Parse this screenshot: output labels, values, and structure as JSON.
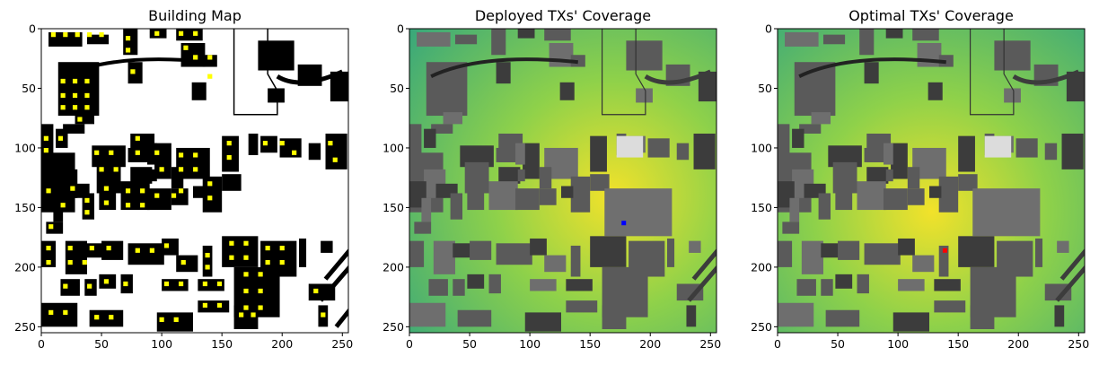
{
  "figure": {
    "panels": [
      {
        "title": "Building Map"
      },
      {
        "title": "Deployed TXs' Coverage"
      },
      {
        "title": "Optimal TXs' Coverage"
      }
    ]
  },
  "chart_data": [
    {
      "type": "heatmap",
      "title": "Building Map",
      "x_ticks": [
        "0",
        "50",
        "100",
        "150",
        "200",
        "250"
      ],
      "y_ticks": [
        "0",
        "50",
        "100",
        "150",
        "200",
        "250"
      ],
      "xlim": [
        0,
        255
      ],
      "ylim": [
        255,
        0
      ],
      "colors": {
        "background": "#ffffff",
        "building": "#000000",
        "candidate_site": "#ffff00"
      },
      "buildings": [
        [
          6,
          3,
          28,
          12
        ],
        [
          38,
          5,
          18,
          8
        ],
        [
          68,
          0,
          12,
          22
        ],
        [
          90,
          0,
          14,
          8
        ],
        [
          112,
          0,
          22,
          10
        ],
        [
          116,
          12,
          20,
          20
        ],
        [
          72,
          28,
          12,
          18
        ],
        [
          134,
          22,
          12,
          10
        ],
        [
          180,
          10,
          30,
          25
        ],
        [
          125,
          45,
          12,
          15
        ],
        [
          188,
          50,
          14,
          12
        ],
        [
          213,
          30,
          20,
          18
        ],
        [
          240,
          36,
          16,
          25
        ],
        [
          14,
          28,
          34,
          45
        ],
        [
          18,
          38,
          24,
          12
        ],
        [
          28,
          70,
          16,
          10
        ],
        [
          18,
          80,
          18,
          8
        ],
        [
          0,
          80,
          10,
          28
        ],
        [
          12,
          84,
          10,
          16
        ],
        [
          0,
          104,
          28,
          50
        ],
        [
          12,
          118,
          18,
          24
        ],
        [
          42,
          98,
          28,
          18
        ],
        [
          46,
          112,
          20,
          26
        ],
        [
          74,
          88,
          20,
          24
        ],
        [
          94,
          96,
          14,
          30
        ],
        [
          112,
          100,
          28,
          26
        ],
        [
          134,
          124,
          16,
          30
        ],
        [
          150,
          90,
          14,
          30
        ],
        [
          150,
          122,
          16,
          14
        ],
        [
          172,
          88,
          8,
          18
        ],
        [
          182,
          90,
          14,
          14
        ],
        [
          198,
          92,
          18,
          16
        ],
        [
          222,
          96,
          10,
          14
        ],
        [
          236,
          88,
          18,
          30
        ],
        [
          72,
          100,
          18,
          12
        ],
        [
          88,
          96,
          8,
          18
        ],
        [
          74,
          116,
          18,
          14
        ],
        [
          90,
          118,
          6,
          10
        ],
        [
          108,
          116,
          10,
          18
        ],
        [
          0,
          128,
          14,
          22
        ],
        [
          10,
          142,
          8,
          20
        ],
        [
          4,
          162,
          14,
          10
        ],
        [
          22,
          130,
          18,
          12
        ],
        [
          34,
          138,
          10,
          22
        ],
        [
          48,
          128,
          14,
          24
        ],
        [
          66,
          128,
          24,
          24
        ],
        [
          88,
          134,
          20,
          18
        ],
        [
          108,
          134,
          14,
          14
        ],
        [
          126,
          132,
          10,
          10
        ],
        [
          0,
          178,
          12,
          22
        ],
        [
          20,
          178,
          18,
          28
        ],
        [
          36,
          180,
          18,
          12
        ],
        [
          50,
          178,
          18,
          16
        ],
        [
          72,
          180,
          30,
          18
        ],
        [
          100,
          176,
          14,
          14
        ],
        [
          112,
          190,
          18,
          14
        ],
        [
          134,
          182,
          8,
          26
        ],
        [
          150,
          174,
          30,
          26
        ],
        [
          182,
          178,
          30,
          30
        ],
        [
          214,
          176,
          6,
          24
        ],
        [
          232,
          178,
          10,
          10
        ],
        [
          16,
          210,
          16,
          14
        ],
        [
          36,
          210,
          10,
          14
        ],
        [
          48,
          206,
          14,
          12
        ],
        [
          66,
          206,
          10,
          16
        ],
        [
          100,
          210,
          22,
          10
        ],
        [
          130,
          210,
          22,
          10
        ],
        [
          160,
          200,
          38,
          42
        ],
        [
          222,
          214,
          22,
          14
        ],
        [
          230,
          232,
          8,
          18
        ],
        [
          0,
          230,
          30,
          20
        ],
        [
          40,
          236,
          28,
          14
        ],
        [
          96,
          238,
          30,
          16
        ],
        [
          130,
          228,
          26,
          10
        ],
        [
          160,
          232,
          20,
          20
        ]
      ],
      "sites": [
        [
          10,
          5
        ],
        [
          20,
          5
        ],
        [
          30,
          5
        ],
        [
          40,
          5
        ],
        [
          50,
          5
        ],
        [
          72,
          8
        ],
        [
          72,
          18
        ],
        [
          96,
          4
        ],
        [
          116,
          4
        ],
        [
          128,
          4
        ],
        [
          120,
          16
        ],
        [
          128,
          24
        ],
        [
          140,
          24
        ],
        [
          76,
          36
        ],
        [
          140,
          40
        ],
        [
          18,
          44
        ],
        [
          28,
          44
        ],
        [
          38,
          44
        ],
        [
          18,
          56
        ],
        [
          28,
          56
        ],
        [
          38,
          56
        ],
        [
          18,
          66
        ],
        [
          28,
          66
        ],
        [
          38,
          66
        ],
        [
          32,
          76
        ],
        [
          4,
          92
        ],
        [
          4,
          102
        ],
        [
          16,
          92
        ],
        [
          46,
          104
        ],
        [
          58,
          104
        ],
        [
          50,
          118
        ],
        [
          62,
          118
        ],
        [
          80,
          92
        ],
        [
          80,
          104
        ],
        [
          96,
          104
        ],
        [
          100,
          118
        ],
        [
          116,
          106
        ],
        [
          128,
          106
        ],
        [
          116,
          118
        ],
        [
          128,
          118
        ],
        [
          140,
          130
        ],
        [
          140,
          142
        ],
        [
          156,
          96
        ],
        [
          156,
          108
        ],
        [
          186,
          96
        ],
        [
          200,
          96
        ],
        [
          210,
          104
        ],
        [
          240,
          96
        ],
        [
          244,
          110
        ],
        [
          6,
          136
        ],
        [
          18,
          148
        ],
        [
          8,
          166
        ],
        [
          26,
          134
        ],
        [
          38,
          144
        ],
        [
          38,
          154
        ],
        [
          54,
          134
        ],
        [
          54,
          146
        ],
        [
          72,
          136
        ],
        [
          84,
          136
        ],
        [
          72,
          148
        ],
        [
          84,
          148
        ],
        [
          96,
          140
        ],
        [
          110,
          140
        ],
        [
          116,
          136
        ],
        [
          6,
          184
        ],
        [
          6,
          196
        ],
        [
          24,
          184
        ],
        [
          24,
          196
        ],
        [
          36,
          196
        ],
        [
          42,
          184
        ],
        [
          56,
          184
        ],
        [
          80,
          186
        ],
        [
          92,
          186
        ],
        [
          104,
          182
        ],
        [
          118,
          196
        ],
        [
          138,
          190
        ],
        [
          138,
          200
        ],
        [
          158,
          180
        ],
        [
          170,
          180
        ],
        [
          158,
          192
        ],
        [
          170,
          192
        ],
        [
          188,
          184
        ],
        [
          200,
          184
        ],
        [
          188,
          196
        ],
        [
          200,
          196
        ],
        [
          20,
          216
        ],
        [
          40,
          216
        ],
        [
          54,
          212
        ],
        [
          70,
          214
        ],
        [
          104,
          214
        ],
        [
          116,
          214
        ],
        [
          136,
          214
        ],
        [
          148,
          214
        ],
        [
          170,
          206
        ],
        [
          182,
          206
        ],
        [
          170,
          220
        ],
        [
          182,
          220
        ],
        [
          170,
          234
        ],
        [
          182,
          234
        ],
        [
          228,
          220
        ],
        [
          234,
          240
        ],
        [
          8,
          238
        ],
        [
          20,
          238
        ],
        [
          46,
          242
        ],
        [
          58,
          242
        ],
        [
          100,
          244
        ],
        [
          112,
          244
        ],
        [
          136,
          232
        ],
        [
          148,
          232
        ],
        [
          166,
          240
        ],
        [
          176,
          240
        ]
      ],
      "notes": [
        [
          158,
          0
        ],
        [
          240,
          18
        ]
      ]
    },
    {
      "type": "heatmap",
      "title": "Deployed TXs' Coverage",
      "x_ticks": [
        "0",
        "50",
        "100",
        "150",
        "200",
        "250"
      ],
      "y_ticks": [
        "0",
        "50",
        "100",
        "150",
        "200",
        "250"
      ],
      "xlim": [
        0,
        255
      ],
      "ylim": [
        255,
        0
      ],
      "colors": {
        "low": "#3aa87a",
        "mid": "#8ed14a",
        "high": "#f2e22a",
        "building": "#5a5a5a",
        "transmitter": "#0000ff"
      },
      "transmitters": [
        [
          178,
          163
        ]
      ]
    },
    {
      "type": "heatmap",
      "title": "Optimal TXs' Coverage",
      "x_ticks": [
        "0",
        "50",
        "100",
        "150",
        "200",
        "250"
      ],
      "y_ticks": [
        "0",
        "50",
        "100",
        "150",
        "200",
        "250"
      ],
      "xlim": [
        0,
        255
      ],
      "ylim": [
        255,
        0
      ],
      "colors": {
        "low": "#3aa87a",
        "mid": "#8ed14a",
        "high": "#f2e22a",
        "building": "#5a5a5a",
        "transmitter": "#ff0000"
      },
      "transmitters": [
        [
          139,
          186
        ]
      ]
    }
  ]
}
